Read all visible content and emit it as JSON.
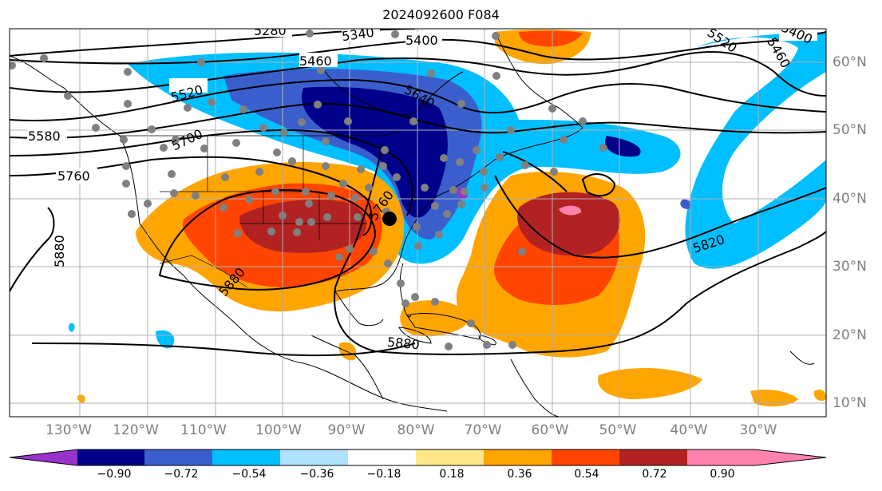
{
  "title": "2024092600 F084",
  "map": {
    "lon_labels": [
      "130°W",
      "120°W",
      "110°W",
      "100°W",
      "90°W",
      "80°W",
      "70°W",
      "60°W",
      "50°W",
      "40°W",
      "30°W"
    ],
    "lat_labels": [
      "60°N",
      "50°N",
      "40°N",
      "30°N",
      "20°N",
      "10°N"
    ],
    "contour_labels": [
      "5280",
      "5340",
      "5400",
      "5460",
      "5520",
      "5580",
      "5640",
      "5700",
      "5760",
      "5820",
      "5880"
    ],
    "marker": "black-dot"
  },
  "colorbar": {
    "ticks": [
      "−0.90",
      "−0.72",
      "−0.54",
      "−0.36",
      "−0.18",
      "0.18",
      "0.36",
      "0.54",
      "0.72",
      "0.90"
    ],
    "colors": [
      "#9932cc",
      "#00008b",
      "#3a5fcd",
      "#00bfff",
      "#b0e2ff",
      "#ffffff",
      "#ffe78a",
      "#ffa500",
      "#ff4500",
      "#b22222",
      "#ff82ab"
    ]
  }
}
